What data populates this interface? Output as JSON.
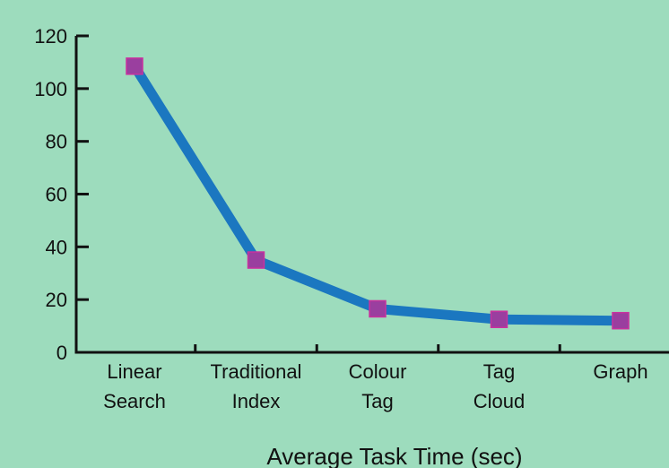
{
  "chart_data": {
    "type": "line",
    "x_label": "Average Task Time (sec)",
    "categories": [
      "Linear Search",
      "Traditional Index",
      "Colour Tag",
      "Tag Cloud",
      "Graph"
    ],
    "series": [
      {
        "name": "Average Task Time",
        "color": "#1b77c0",
        "marker_color": "#9a3f9f",
        "values": [
          108.5,
          35,
          16.5,
          12.5,
          12
        ]
      }
    ],
    "ylim": [
      0,
      120
    ],
    "yticks": [
      0,
      20,
      40,
      60,
      80,
      100,
      120
    ],
    "grid": false
  }
}
